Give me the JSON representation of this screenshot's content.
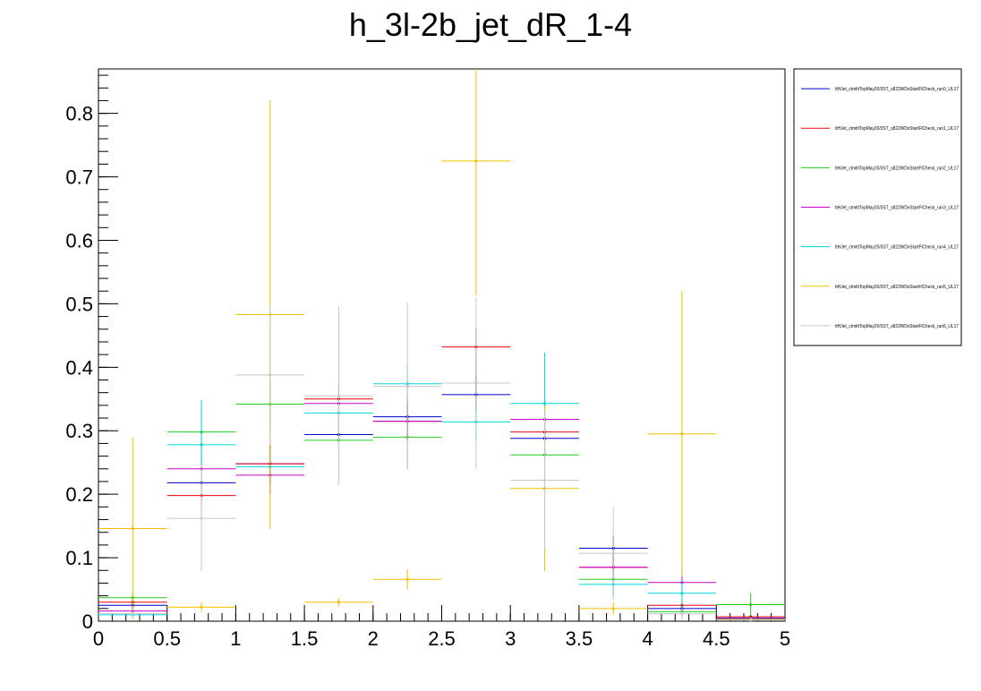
{
  "chart_data": {
    "type": "scatter",
    "title": "h_3l-2b_jet_dR_1-4",
    "xlabel": "",
    "ylabel": "",
    "xlim": [
      0,
      5
    ],
    "ylim": [
      0,
      0.87
    ],
    "bin_width": 0.5,
    "x": [
      0.25,
      0.75,
      1.25,
      1.75,
      2.25,
      2.75,
      3.25,
      3.75,
      4.25,
      4.75
    ],
    "x_ticks": [
      "0",
      "0.5",
      "1",
      "1.5",
      "2",
      "2.5",
      "3",
      "3.5",
      "4",
      "4.5",
      "5"
    ],
    "y_ticks": [
      "0",
      "0.1",
      "0.2",
      "0.3",
      "0.4",
      "0.5",
      "0.6",
      "0.7",
      "0.8"
    ],
    "legend_position": "right",
    "grid": false,
    "series": [
      {
        "name": "ttHJet_ctmlttTopMay20/3ST_s822WDxStartFlCheck_run0_UL17",
        "color": "#0000cc",
        "values": [
          0.025,
          0.218,
          0.248,
          0.294,
          0.322,
          0.357,
          0.288,
          0.115,
          0.02,
          0.005
        ],
        "errors": [
          0.01,
          0.03,
          0.03,
          0.03,
          0.03,
          0.03,
          0.03,
          0.02,
          0.01,
          0.003
        ]
      },
      {
        "name": "ttHJet_ctmlttTopMay20/3ST_s822WDxStartFlCheck_run1_UL17",
        "color": "#e8000b",
        "values": [
          0.03,
          0.198,
          0.248,
          0.35,
          0.315,
          0.432,
          0.298,
          0.085,
          0.025,
          0.007
        ],
        "errors": [
          0.01,
          0.03,
          0.03,
          0.03,
          0.03,
          0.03,
          0.03,
          0.02,
          0.01,
          0.003
        ]
      },
      {
        "name": "ttHJet_ctmlttTopMay20/3ST_s822WDxStartFlCheck_run2_UL17",
        "color": "#22cc22",
        "values": [
          0.037,
          0.298,
          0.342,
          0.285,
          0.29,
          0.375,
          0.262,
          0.066,
          0.015,
          0.026
        ],
        "errors": [
          0.01,
          0.05,
          0.04,
          0.03,
          0.05,
          0.04,
          0.04,
          0.02,
          0.01,
          0.018
        ]
      },
      {
        "name": "ttHJet_ctmlttTopMay20/3ST_s822WDxStartFlCheck_run3_UL17",
        "color": "#cc00cc",
        "values": [
          0.016,
          0.24,
          0.23,
          0.343,
          0.315,
          0.375,
          0.318,
          0.085,
          0.061,
          0.004
        ],
        "errors": [
          0.01,
          0.03,
          0.03,
          0.03,
          0.03,
          0.03,
          0.03,
          0.02,
          0.02,
          0.003
        ]
      },
      {
        "name": "ttHJet_ctmlttTopMay20/3ST_s822WDxStartFlCheck_run4_UL17",
        "color": "#00d8d8",
        "values": [
          0.01,
          0.278,
          0.243,
          0.328,
          0.374,
          0.314,
          0.343,
          0.058,
          0.044,
          0.003
        ],
        "errors": [
          0.005,
          0.07,
          0.03,
          0.03,
          0.03,
          0.03,
          0.08,
          0.02,
          0.02,
          0.003
        ]
      },
      {
        "name": "ttHJet_ctmlttTopMay20/3ST_s822WDxStartFlCheck_run5_UL17",
        "color": "#f2c000",
        "values": [
          0.146,
          0.022,
          0.483,
          0.03,
          0.066,
          0.725,
          0.209,
          0.02,
          0.295,
          0.003
        ],
        "errors": [
          0.143,
          0.007,
          0.338,
          0.006,
          0.016,
          0.212,
          0.13,
          0.01,
          0.225,
          0.002
        ]
      },
      {
        "name": "ttHJet_ctmlttTopMay20/3ST_s822WDxStartFlCheck_run6_UL17",
        "color": "#c8c8c8",
        "values": [
          0.012,
          0.162,
          0.388,
          0.355,
          0.37,
          0.375,
          0.222,
          0.107,
          0.012,
          0.002
        ],
        "errors": [
          0.006,
          0.083,
          0.11,
          0.141,
          0.132,
          0.135,
          0.108,
          0.073,
          0.01,
          0.002
        ]
      }
    ]
  }
}
